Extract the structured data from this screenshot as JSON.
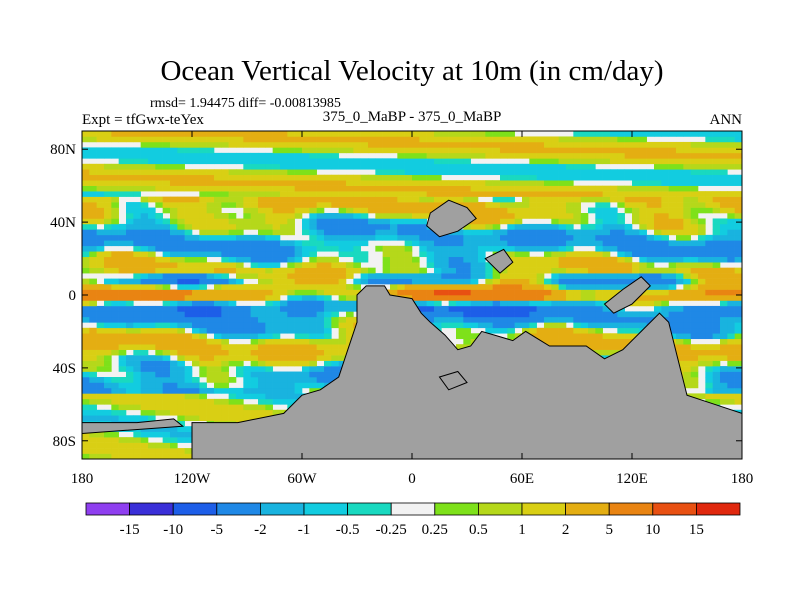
{
  "chart_data": {
    "type": "heatmap",
    "title": "Ocean Vertical Velocity at 10m (in cm/day)",
    "stats_text": "rmsd= 1.94475 diff= -0.00813985",
    "left_label": "Expt = tfGwx-teYex",
    "center_label": "375_0_MaBP - 375_0_MaBP",
    "right_label": "ANN",
    "x_ticks": [
      "180",
      "120W",
      "60W",
      "0",
      "60E",
      "120E",
      "180"
    ],
    "x_values": [
      -180,
      -120,
      -60,
      0,
      60,
      120,
      180
    ],
    "y_ticks": [
      "80N",
      "40N",
      "0",
      "40S",
      "80S"
    ],
    "y_values": [
      80,
      40,
      0,
      -40,
      -80
    ],
    "xlim": [
      -180,
      180
    ],
    "ylim": [
      -90,
      90
    ],
    "colorbar_labels": [
      "-15",
      "-10",
      "-5",
      "-2",
      "-1",
      "-0.5",
      "-0.25",
      "0.25",
      "0.5",
      "1",
      "2",
      "5",
      "10",
      "15"
    ],
    "colorbar_colors": [
      "#8f3ff0",
      "#3a2fd8",
      "#1d5ee8",
      "#1f88e6",
      "#19b3df",
      "#12cce0",
      "#19d9c0",
      "#f2f2f2",
      "#7ee11a",
      "#b5d81a",
      "#d9cf14",
      "#e4ae12",
      "#e98412",
      "#e85012",
      "#e0280e"
    ],
    "land_color": "#a0a0a0"
  }
}
